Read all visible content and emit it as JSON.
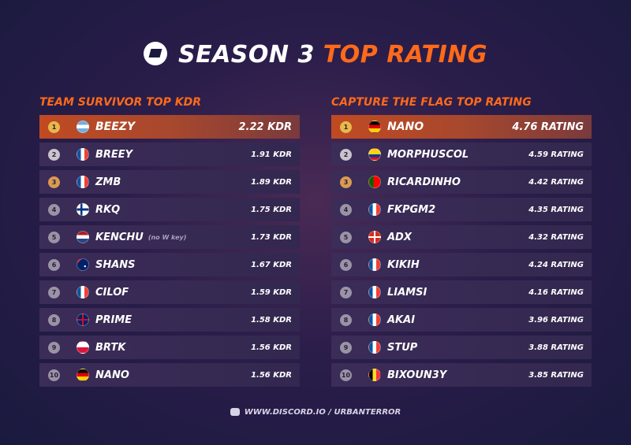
{
  "header": {
    "title_main": "SEASON 3",
    "title_accent": "TOP RATING"
  },
  "tables": [
    {
      "title": "TEAM SURVIVOR TOP KDR",
      "rows": [
        {
          "rank": 1,
          "player": "BEEZY",
          "score": "2.22 KDR"
        },
        {
          "rank": 2,
          "player": "BREEY",
          "score": "1.91 KDR"
        },
        {
          "rank": 3,
          "player": "ZMB",
          "score": "1.89 KDR"
        },
        {
          "rank": 4,
          "player": "RKQ",
          "score": "1.75 KDR"
        },
        {
          "rank": 5,
          "player": "KENCHU",
          "note": "(no W key)",
          "score": "1.73 KDR"
        },
        {
          "rank": 6,
          "player": "SHANS",
          "score": "1.67 KDR"
        },
        {
          "rank": 7,
          "player": "CILOF",
          "score": "1.59 KDR"
        },
        {
          "rank": 8,
          "player": "PRIME",
          "score": "1.58 KDR"
        },
        {
          "rank": 9,
          "player": "BRTK",
          "score": "1.56 KDR"
        },
        {
          "rank": 10,
          "player": "NANO",
          "score": "1.56 KDR"
        }
      ]
    },
    {
      "title": "CAPTURE THE FLAG TOP RATING",
      "rows": [
        {
          "rank": 1,
          "player": "NANO",
          "score": "4.76 RATING"
        },
        {
          "rank": 2,
          "player": "MORPHUSCOL",
          "score": "4.59 RATING"
        },
        {
          "rank": 3,
          "player": "RICARDINHO",
          "score": "4.42 RATING"
        },
        {
          "rank": 4,
          "player": "FKPGM2",
          "score": "4.35 RATING"
        },
        {
          "rank": 5,
          "player": "ADX",
          "score": "4.32 RATING"
        },
        {
          "rank": 6,
          "player": "KIKIH",
          "score": "4.24 RATING"
        },
        {
          "rank": 7,
          "player": "LIAMSI",
          "score": "4.16 RATING"
        },
        {
          "rank": 8,
          "player": "AKAI",
          "score": "3.96 RATING"
        },
        {
          "rank": 9,
          "player": "STUP",
          "score": "3.88 RATING"
        },
        {
          "rank": 10,
          "player": "BIXOUN3Y",
          "score": "3.85 RATING"
        }
      ]
    }
  ],
  "footer": "WWW.DISCORD.IO / URBANTERROR"
}
